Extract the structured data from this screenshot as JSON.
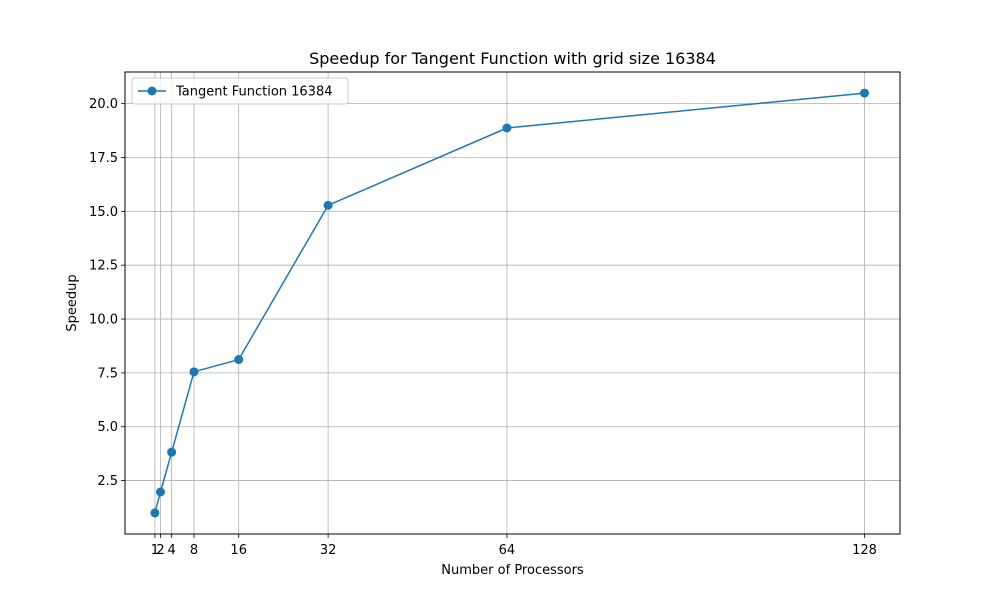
{
  "chart_data": {
    "type": "line",
    "title": "Speedup for Tangent Function with grid size 16384",
    "xlabel": "Number of Processors",
    "ylabel": "Speedup",
    "x": [
      1,
      2,
      4,
      8,
      16,
      32,
      64,
      128
    ],
    "series": [
      {
        "name": "Tangent Function 16384",
        "values": [
          1.0,
          1.97,
          3.82,
          7.55,
          8.12,
          15.28,
          18.87,
          20.49
        ],
        "color": "#1f77b4",
        "marker": "circle"
      }
    ],
    "xlim": [
      -4.35,
      134.35
    ],
    "ylim": [
      0.02,
      21.47
    ],
    "xticks": [
      1,
      2,
      4,
      8,
      16,
      32,
      64,
      128
    ],
    "xtick_labels": [
      "1",
      "2",
      "4",
      "8",
      "16",
      "32",
      "64",
      "128"
    ],
    "yticks": [
      2.5,
      5.0,
      7.5,
      10.0,
      12.5,
      15.0,
      17.5,
      20.0
    ],
    "ytick_labels": [
      "2.5",
      "5.0",
      "7.5",
      "10.0",
      "12.5",
      "15.0",
      "17.5",
      "20.0"
    ],
    "grid": true,
    "legend_position": "upper-left"
  }
}
